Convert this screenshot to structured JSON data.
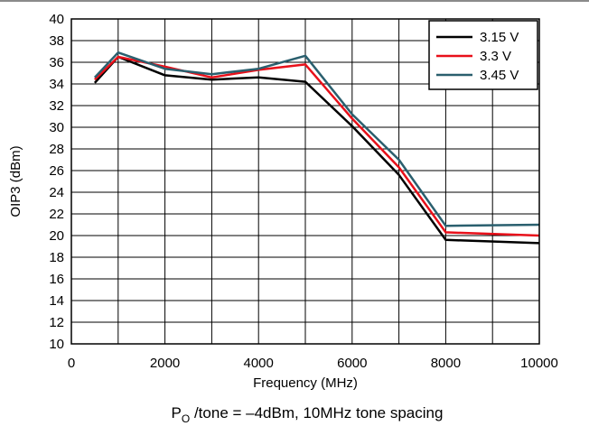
{
  "chart_data": {
    "type": "line",
    "title": "",
    "xlabel": "Frequency (MHz)",
    "ylabel": "OIP3 (dBm)",
    "xlim": [
      0,
      10000
    ],
    "ylim": [
      10,
      40
    ],
    "xticks": [
      0,
      2000,
      4000,
      6000,
      8000,
      10000
    ],
    "yticks": [
      10,
      12,
      14,
      16,
      18,
      20,
      22,
      24,
      26,
      28,
      30,
      32,
      34,
      36,
      38,
      40
    ],
    "x_minor_step": 1000,
    "grid": true,
    "legend_position": "top-right",
    "caption": {
      "prefix": "P",
      "subscript": "O",
      "suffix": " /tone = –4dBm, 10MHz tone spacing"
    },
    "x": [
      500,
      1000,
      2000,
      3000,
      4000,
      5000,
      6000,
      7000,
      8000,
      10000
    ],
    "series": [
      {
        "name": "3.15 V",
        "color": "#000000",
        "values": [
          34.1,
          36.5,
          34.8,
          34.4,
          34.6,
          34.2,
          30.1,
          25.6,
          19.6,
          19.3
        ]
      },
      {
        "name": "3.3 V",
        "color": "#e8101a",
        "values": [
          34.4,
          36.5,
          35.6,
          34.6,
          35.3,
          35.8,
          30.8,
          26.3,
          20.3,
          20.0
        ]
      },
      {
        "name": "3.45 V",
        "color": "#2a5f6e",
        "values": [
          34.6,
          36.9,
          35.4,
          34.9,
          35.4,
          36.6,
          31.2,
          27.0,
          20.9,
          21.0
        ]
      }
    ]
  }
}
